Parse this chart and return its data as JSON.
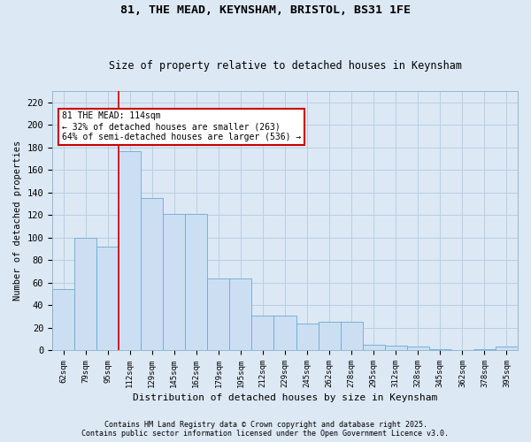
{
  "title1": "81, THE MEAD, KEYNSHAM, BRISTOL, BS31 1FE",
  "title2": "Size of property relative to detached houses in Keynsham",
  "xlabel": "Distribution of detached houses by size in Keynsham",
  "ylabel": "Number of detached properties",
  "categories": [
    "62sqm",
    "79sqm",
    "95sqm",
    "112sqm",
    "129sqm",
    "145sqm",
    "162sqm",
    "179sqm",
    "195sqm",
    "212sqm",
    "229sqm",
    "245sqm",
    "262sqm",
    "278sqm",
    "295sqm",
    "312sqm",
    "328sqm",
    "345sqm",
    "362sqm",
    "378sqm",
    "395sqm"
  ],
  "values": [
    54,
    100,
    92,
    177,
    135,
    121,
    121,
    64,
    64,
    31,
    31,
    24,
    25,
    25,
    5,
    4,
    3,
    1,
    0,
    1,
    3
  ],
  "bar_color": "#ccdff2",
  "bar_edge_color": "#6aaad4",
  "vline_x": 2.5,
  "annotation_text": "81 THE MEAD: 114sqm\n← 32% of detached houses are smaller (263)\n64% of semi-detached houses are larger (536) →",
  "annotation_box_facecolor": "white",
  "annotation_box_edgecolor": "#cc0000",
  "vline_color": "#cc0000",
  "grid_color": "#b8cfe4",
  "background_color": "#dce8f4",
  "ylim": [
    0,
    230
  ],
  "yticks": [
    0,
    20,
    40,
    60,
    80,
    100,
    120,
    140,
    160,
    180,
    200,
    220
  ],
  "footer1": "Contains HM Land Registry data © Crown copyright and database right 2025.",
  "footer2": "Contains public sector information licensed under the Open Government Licence v3.0."
}
